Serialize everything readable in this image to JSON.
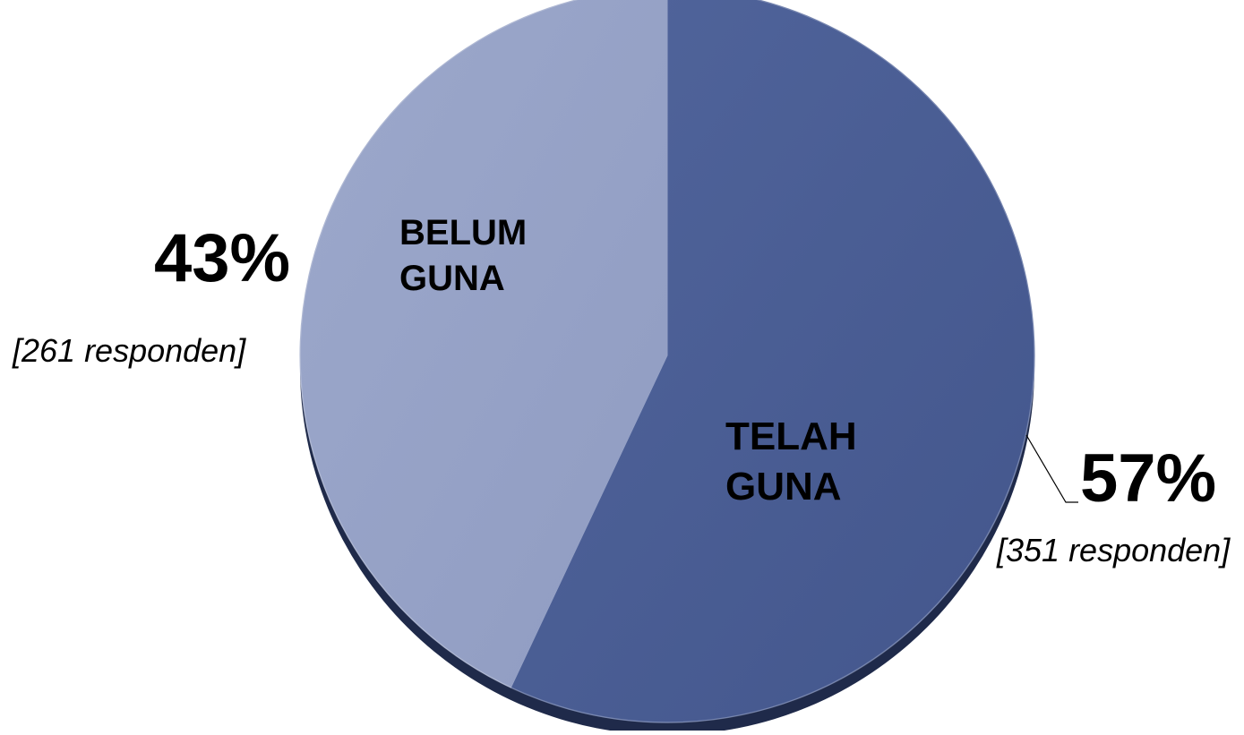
{
  "chart_data": {
    "type": "pie",
    "slices": [
      {
        "label_lines": [
          "TELAH",
          "GUNA"
        ],
        "value": 57,
        "value_label": "57%",
        "count_label": "[351 responden]",
        "color": "#4a5e96"
      },
      {
        "label_lines": [
          "BELUM",
          "GUNA"
        ],
        "value": 43,
        "value_label": "43%",
        "count_label": "[261 responden]",
        "color": "#95a1c5"
      }
    ],
    "start_angle": "12 o'clock",
    "direction": "clockwise",
    "legend": "none"
  }
}
